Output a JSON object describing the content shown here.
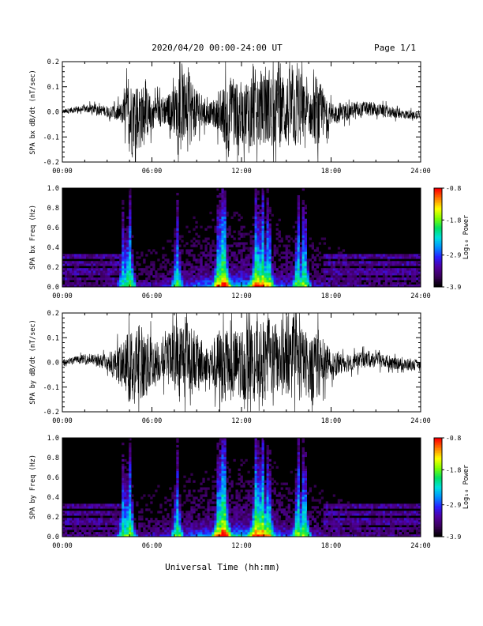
{
  "header": {
    "title": "2020/04/20  00:00-24:00 UT",
    "page": "Page 1/1"
  },
  "xlabel": "Universal Time (hh:mm)",
  "chart_data": [
    {
      "type": "line",
      "ylabel": "SPA bx dB/dt (nT/sec)",
      "xlim": [
        0,
        24
      ],
      "ylim": [
        -0.2,
        0.2
      ],
      "xticks": [
        "00:00",
        "06:00",
        "12:00",
        "18:00",
        "24:00"
      ],
      "yticks": [
        "-0.2",
        "-0.1",
        "0.0",
        "0.1",
        "0.2"
      ],
      "series": [
        {
          "x": [
            0,
            1,
            2,
            3,
            4,
            4.5,
            5,
            5.5,
            6,
            6.5,
            7,
            7.5,
            8,
            8.5,
            9,
            9.5,
            10,
            10.5,
            11,
            11.5,
            12,
            12.5,
            13,
            13.5,
            14,
            14.5,
            15,
            15.5,
            16,
            16.5,
            17,
            17.5,
            18,
            19,
            20,
            21,
            22,
            23,
            24
          ],
          "amplitude": [
            0.012,
            0.018,
            0.025,
            0.03,
            0.06,
            0.2,
            0.2,
            0.15,
            0.09,
            0.08,
            0.09,
            0.12,
            0.2,
            0.2,
            0.12,
            0.07,
            0.06,
            0.1,
            0.2,
            0.2,
            0.15,
            0.2,
            0.2,
            0.2,
            0.2,
            0.2,
            0.2,
            0.2,
            0.2,
            0.1,
            0.2,
            0.12,
            0.06,
            0.045,
            0.04,
            0.035,
            0.03,
            0.025,
            0.02
          ]
        }
      ]
    },
    {
      "type": "heatmap",
      "ylabel": "SPA bx Freq (Hz)",
      "colorbar_label": "Log₁₀ Power",
      "xlim": [
        0,
        24
      ],
      "ylim": [
        0.0,
        1.0
      ],
      "clim": [
        -3.9,
        -0.8
      ],
      "xticks": [
        "00:00",
        "06:00",
        "12:00",
        "18:00",
        "24:00"
      ],
      "yticks": [
        "0.0",
        "0.2",
        "0.4",
        "0.6",
        "0.8",
        "1.0"
      ],
      "cbar_ticks": [
        "-0.8",
        "-1.8",
        "-2.9",
        "-3.9"
      ],
      "activity_hours": [
        {
          "hour": 4.1,
          "power": -2.3
        },
        {
          "hour": 4.5,
          "power": -2.0
        },
        {
          "hour": 7.7,
          "power": -2.2
        },
        {
          "hour": 10.5,
          "power": -1.9
        },
        {
          "hour": 10.8,
          "power": -1.6
        },
        {
          "hour": 13.0,
          "power": -1.8
        },
        {
          "hour": 13.4,
          "power": -1.8
        },
        {
          "hour": 13.8,
          "power": -2.0
        },
        {
          "hour": 15.8,
          "power": -2.1
        },
        {
          "hour": 16.2,
          "power": -2.0
        }
      ],
      "band_lines_hz": [
        0.08,
        0.12,
        0.16,
        0.19,
        0.22,
        0.26,
        0.3,
        0.33
      ]
    },
    {
      "type": "line",
      "ylabel": "SPA by dB/dt (nT/sec)",
      "xlim": [
        0,
        24
      ],
      "ylim": [
        -0.2,
        0.2
      ],
      "xticks": [
        "00:00",
        "06:00",
        "12:00",
        "18:00",
        "24:00"
      ],
      "yticks": [
        "-0.2",
        "-0.1",
        "0.0",
        "0.1",
        "0.2"
      ],
      "series": [
        {
          "x": [
            0,
            1,
            2,
            3,
            4,
            4.5,
            5,
            5.5,
            6,
            6.5,
            7,
            7.5,
            8,
            8.5,
            9,
            9.5,
            10,
            10.5,
            11,
            11.5,
            12,
            12.5,
            13,
            13.5,
            14,
            14.5,
            15,
            15.5,
            16,
            16.5,
            17,
            17.5,
            18,
            19,
            20,
            21,
            22,
            23,
            24
          ],
          "amplitude": [
            0.015,
            0.02,
            0.03,
            0.04,
            0.12,
            0.2,
            0.2,
            0.2,
            0.14,
            0.1,
            0.12,
            0.18,
            0.2,
            0.2,
            0.14,
            0.1,
            0.12,
            0.2,
            0.2,
            0.2,
            0.2,
            0.2,
            0.2,
            0.2,
            0.2,
            0.2,
            0.2,
            0.2,
            0.2,
            0.14,
            0.2,
            0.12,
            0.07,
            0.05,
            0.045,
            0.04,
            0.035,
            0.03,
            0.025
          ]
        }
      ]
    },
    {
      "type": "heatmap",
      "ylabel": "SPA by Freq (Hz)",
      "colorbar_label": "Log₁₀ Power",
      "xlim": [
        0,
        24
      ],
      "ylim": [
        0.0,
        1.0
      ],
      "clim": [
        -3.9,
        -0.8
      ],
      "xticks": [
        "00:00",
        "06:00",
        "12:00",
        "18:00",
        "24:00"
      ],
      "yticks": [
        "0.0",
        "0.2",
        "0.4",
        "0.6",
        "0.8",
        "1.0"
      ],
      "cbar_ticks": [
        "-0.8",
        "-1.8",
        "-2.9",
        "-3.9"
      ],
      "activity_hours": [
        {
          "hour": 4.1,
          "power": -2.2
        },
        {
          "hour": 4.5,
          "power": -2.0
        },
        {
          "hour": 7.7,
          "power": -2.2
        },
        {
          "hour": 10.5,
          "power": -1.9
        },
        {
          "hour": 10.8,
          "power": -1.5
        },
        {
          "hour": 13.0,
          "power": -1.7
        },
        {
          "hour": 13.4,
          "power": -1.7
        },
        {
          "hour": 13.8,
          "power": -2.0
        },
        {
          "hour": 15.8,
          "power": -2.0
        },
        {
          "hour": 16.2,
          "power": -2.0
        }
      ],
      "band_lines_hz": [
        0.08,
        0.12,
        0.16,
        0.19,
        0.22,
        0.26,
        0.3,
        0.33
      ]
    }
  ],
  "colors": {
    "colormap": [
      "#000000",
      "#3a005a",
      "#5000a0",
      "#2a1cff",
      "#0090ff",
      "#00e0e0",
      "#00e060",
      "#80ff00",
      "#ffff00",
      "#ff8000",
      "#ff0000"
    ]
  }
}
